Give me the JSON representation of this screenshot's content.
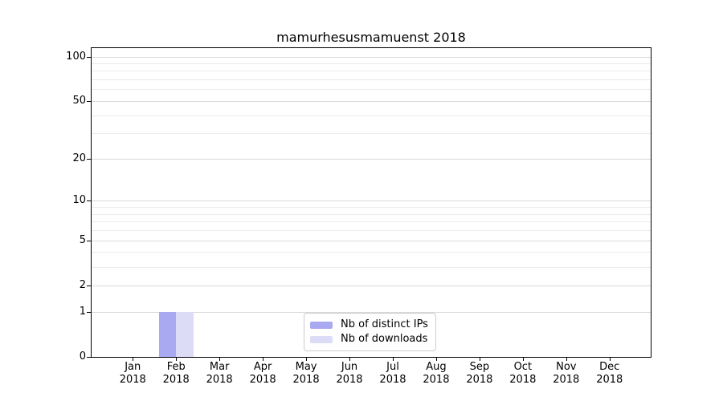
{
  "title": "mamurhesusmamuenst 2018",
  "colors": {
    "bar_distinct_ips": "#a9a9f2",
    "bar_downloads": "#dcdcf7",
    "grid_major": "#d9d9d9",
    "grid_minor": "#ebebeb",
    "spine": "#000000",
    "text": "#000000",
    "legend_border": "#cccccc",
    "background": "#ffffff"
  },
  "chart_data": {
    "type": "bar",
    "title": "mamurhesusmamuenst 2018",
    "categories": [
      "Jan 2018",
      "Feb 2018",
      "Mar 2018",
      "Apr 2018",
      "May 2018",
      "Jun 2018",
      "Jul 2018",
      "Aug 2018",
      "Sep 2018",
      "Oct 2018",
      "Nov 2018",
      "Dec 2018"
    ],
    "series": [
      {
        "name": "Nb of distinct IPs",
        "color": "#a9a9f2",
        "values": [
          0,
          1,
          0,
          0,
          0,
          0,
          0,
          0,
          0,
          0,
          0,
          0
        ]
      },
      {
        "name": "Nb of downloads",
        "color": "#dcdcf7",
        "values": [
          0,
          1,
          0,
          0,
          0,
          0,
          0,
          0,
          0,
          0,
          0,
          0
        ]
      }
    ],
    "xlabel": "",
    "ylabel": "",
    "yscale": "log1p",
    "ylim": [
      0,
      114
    ],
    "yticks_major": [
      0,
      1,
      2,
      5,
      10,
      20,
      50,
      100
    ],
    "yticks_minor": [
      3,
      4,
      6,
      7,
      8,
      9,
      30,
      40,
      60,
      70,
      80,
      90
    ],
    "grid": true,
    "legend_position": "lower center"
  }
}
